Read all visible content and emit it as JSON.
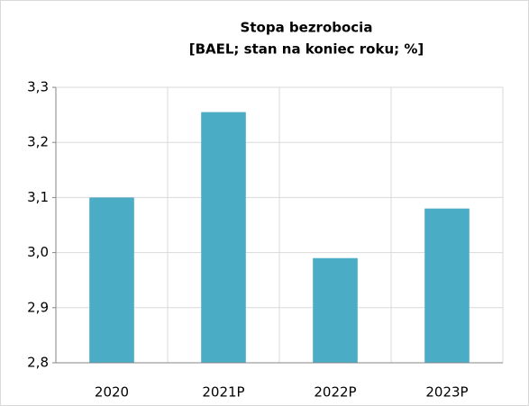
{
  "chart_data": {
    "type": "bar",
    "title": "Stopa bezrobocia",
    "subtitle": "[BAEL; stan na koniec roku; %]",
    "categories": [
      "2020",
      "2021P",
      "2022P",
      "2023P"
    ],
    "values": [
      3.1,
      3.255,
      2.99,
      3.08
    ],
    "color": "#4bacc6",
    "ylim": [
      2.8,
      3.3
    ],
    "yticks": [
      {
        "value": 2.8,
        "label": "2,8"
      },
      {
        "value": 2.9,
        "label": "2,9"
      },
      {
        "value": 3.0,
        "label": "3,0"
      },
      {
        "value": 3.1,
        "label": "3,1"
      },
      {
        "value": 3.2,
        "label": "3,2"
      },
      {
        "value": 3.3,
        "label": "3,3"
      }
    ],
    "grid": true
  }
}
